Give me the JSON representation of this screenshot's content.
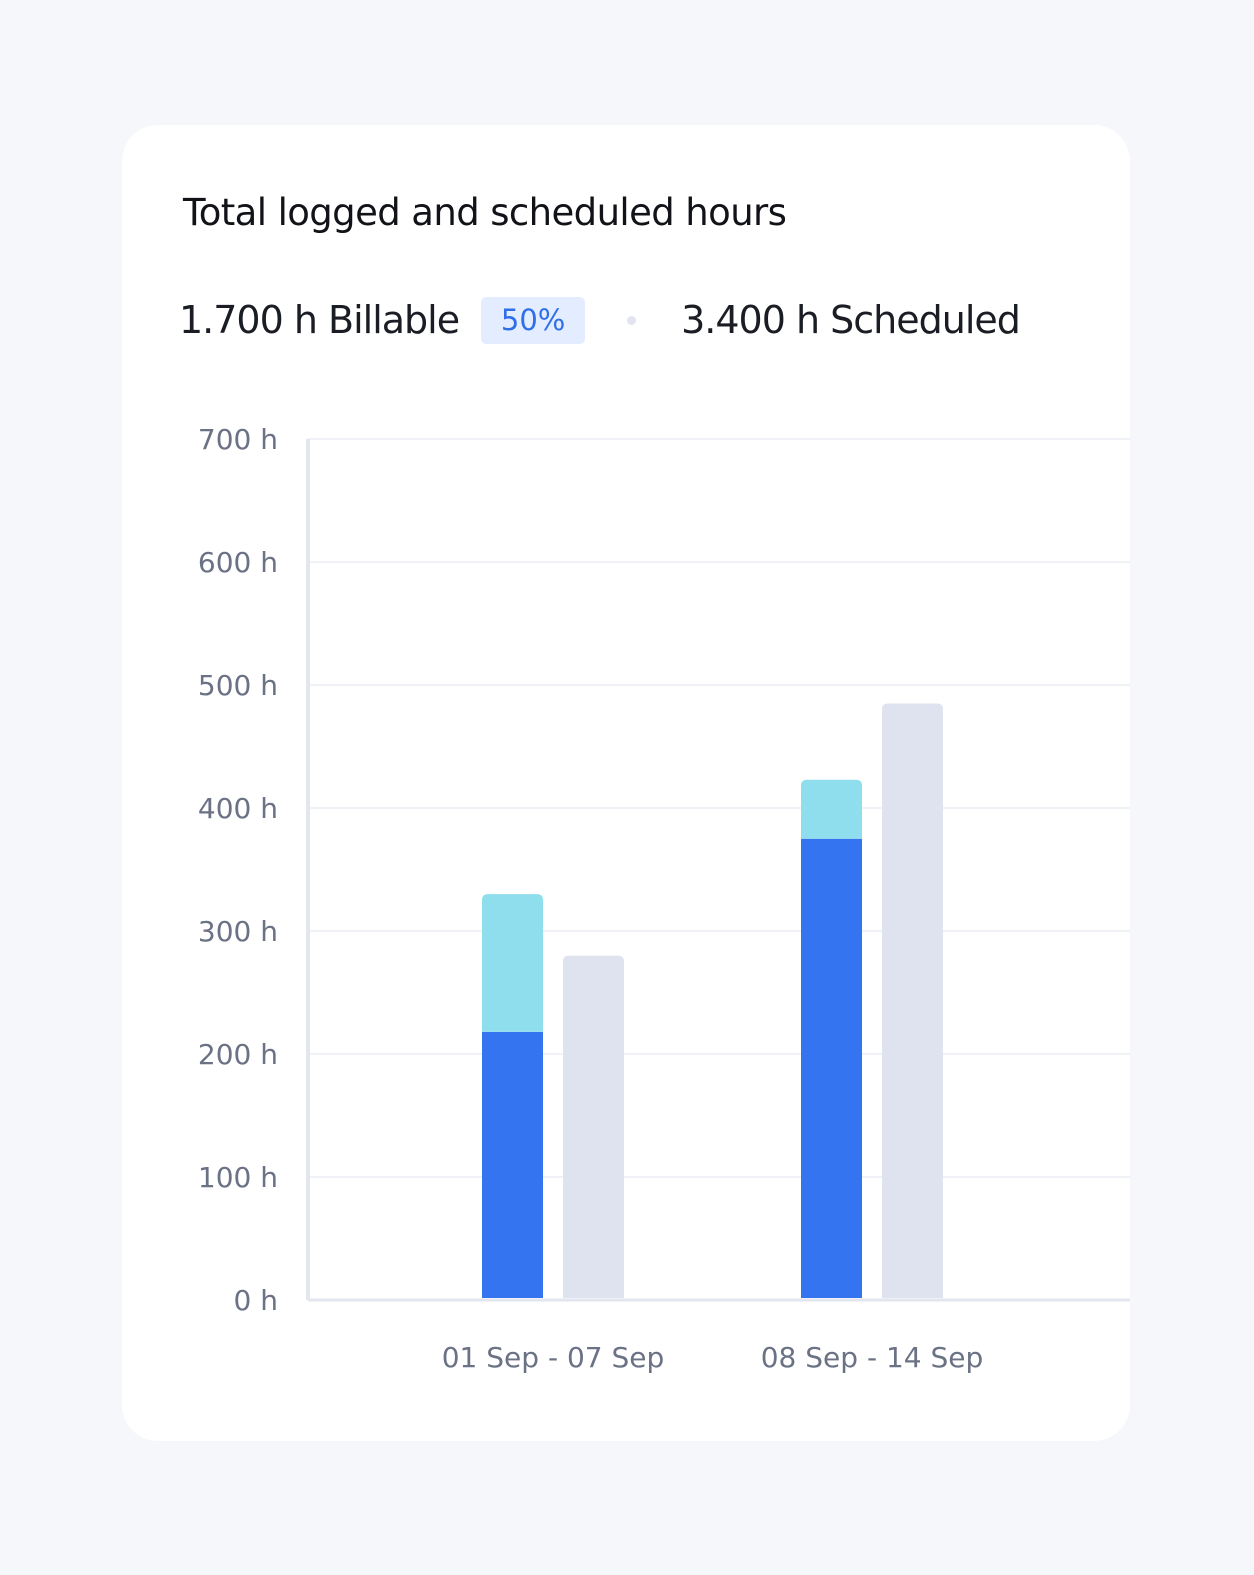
{
  "card": {
    "title": "Total logged and scheduled hours",
    "billable_text": "1.700 h Billable",
    "billable_badge": "50%",
    "scheduled_text": "3.400 h Scheduled"
  },
  "colors": {
    "billable": "#3574f1",
    "non_billable": "#8fdeee",
    "scheduled": "#dfe3ef",
    "badge_bg": "#e4edff",
    "badge_text": "#2f6fe8"
  },
  "chart_data": {
    "type": "bar",
    "title": "",
    "xlabel": "",
    "ylabel": "",
    "ylim": [
      0,
      700
    ],
    "yticks": [
      0,
      100,
      200,
      300,
      400,
      500,
      600,
      700
    ],
    "ytick_labels": [
      "0 h",
      "100 h",
      "200 h",
      "300 h",
      "400 h",
      "500 h",
      "600 h",
      "700 h"
    ],
    "categories": [
      "01 Sep - 07 Sep",
      "08 Sep - 14 Sep"
    ],
    "series": [
      {
        "key": "billable",
        "stack": "logged",
        "values": [
          218,
          375
        ]
      },
      {
        "key": "non_billable",
        "stack": "logged",
        "values": [
          112,
          48
        ]
      },
      {
        "key": "scheduled",
        "stack": "scheduled",
        "values": [
          280,
          485
        ]
      }
    ],
    "grid": true,
    "legend": "none"
  }
}
